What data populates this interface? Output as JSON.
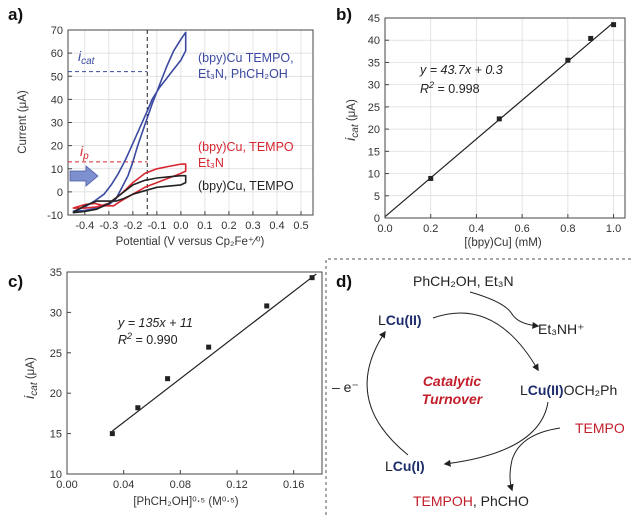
{
  "colors": {
    "blue": "#3b4aa0",
    "red": "#d7262f",
    "black": "#222222",
    "navy": "#1d2d6b",
    "darkred": "#c21e2a"
  },
  "panels": {
    "a": {
      "label": "a)",
      "xlabel": "Potential (V versus Cp₂Fe⁺⁄⁰)",
      "ylabel": "Current (μA)",
      "xticks": [
        "-0.4",
        "-0.3",
        "-0.2",
        "-0.1",
        "0.0",
        "0.1",
        "0.2",
        "0.3",
        "0.4",
        "0.5"
      ],
      "yticks": [
        "-10",
        "0",
        "10",
        "20",
        "30",
        "40",
        "50",
        "60",
        "70"
      ],
      "icat_label": "i",
      "icat_sub": "cat",
      "ip_label": "i",
      "ip_sub": "p",
      "series_blue_line1": "(bpy)Cu TEMPO,",
      "series_blue_line2": "Et₃N, PhCH₂OH",
      "series_red_line1": "(bpy)Cu, TEMPO",
      "series_red_line2": "Et₃N",
      "series_black": "(bpy)Cu, TEMPO"
    },
    "b": {
      "label": "b)",
      "xlabel": "[(bpy)Cu] (mM)",
      "ylabel_main": "i",
      "ylabel_sub": "cat",
      "ylabel_unit": " (μA)",
      "equation": "y = 43.7x + 0.3",
      "r2_label": "R",
      "r2_value": " = 0.998",
      "xticks": [
        "0.0",
        "0.2",
        "0.4",
        "0.6",
        "0.8",
        "1.0"
      ],
      "yticks": [
        "0",
        "5",
        "10",
        "15",
        "20",
        "25",
        "30",
        "35",
        "40",
        "45"
      ]
    },
    "c": {
      "label": "c)",
      "xlabel": "[PhCH₂OH]⁰⋅⁵ (M⁰⋅⁵)",
      "ylabel_main": "i",
      "ylabel_sub": "cat",
      "ylabel_unit": " (μA)",
      "equation": "y = 135x + 11",
      "r2_label": "R",
      "r2_value": " = 0.990",
      "xticks": [
        "0.00",
        "0.04",
        "0.08",
        "0.12",
        "0.16"
      ],
      "yticks": [
        "10",
        "15",
        "20",
        "25",
        "30",
        "35"
      ]
    },
    "d": {
      "label": "d)",
      "reagents": "PhCH₂OH, Et₃N",
      "byproduct": "Et₃NH⁺",
      "lcu2_l": "L",
      "lcu2_cu": "Cu(II)",
      "center_line1": "Catalytic",
      "center_line2": "Turnover",
      "lcu2och_l": "L",
      "lcu2och_cu": "Cu(II)",
      "lcu2och_tail": "OCH₂Ph",
      "tempo": "TEMPO",
      "minus_e": "– e⁻",
      "lcu1_l": "L",
      "lcu1_cu": "Cu(I)",
      "tempoh": "TEMPOH",
      "phcho": ", PhCHO"
    }
  },
  "chart_data": [
    {
      "panel": "a",
      "type": "line",
      "xlabel": "Potential (V versus Cp₂Fe⁺⁄⁰)",
      "ylabel": "Current (μA)",
      "xlim": [
        -0.47,
        0.55
      ],
      "ylim": [
        -10,
        70
      ],
      "series": [
        {
          "name": "(bpy)Cu TEMPO, Et₃N, PhCH₂OH",
          "color": "#3b4aa0",
          "x": [
            -0.45,
            -0.4,
            -0.35,
            -0.3,
            -0.27,
            -0.25,
            -0.22,
            -0.2,
            -0.18,
            -0.15,
            -0.12,
            -0.09,
            -0.06,
            -0.03,
            0.0,
            0.02,
            0.02,
            0.0,
            -0.03,
            -0.06,
            -0.09,
            -0.12,
            -0.14,
            -0.17,
            -0.2,
            -0.23,
            -0.26,
            -0.29,
            -0.32,
            -0.36,
            -0.4,
            -0.45
          ],
          "y": [
            -8.5,
            -8,
            -7,
            -5.5,
            -3,
            1,
            7,
            13,
            20,
            29,
            38,
            46,
            54,
            61,
            66,
            69,
            61,
            57,
            53,
            49,
            45,
            40,
            35,
            28,
            21,
            14,
            8,
            3,
            -1,
            -4,
            -6.5,
            -8.5
          ]
        },
        {
          "name": "(bpy)Cu, TEMPO Et₃N",
          "color": "#d7262f",
          "x": [
            -0.45,
            -0.4,
            -0.35,
            -0.3,
            -0.25,
            -0.2,
            -0.15,
            -0.1,
            -0.05,
            0.0,
            0.02,
            0.02,
            0.0,
            -0.05,
            -0.1,
            -0.15,
            -0.2,
            -0.25,
            -0.28,
            -0.32,
            -0.36,
            -0.4,
            -0.45
          ],
          "y": [
            -7,
            -7,
            -6.5,
            -5,
            -1,
            4,
            8,
            10,
            11,
            12,
            12,
            9,
            8,
            6,
            4,
            2,
            -1,
            -4,
            -6,
            -6,
            -5,
            -5.5,
            -7
          ]
        },
        {
          "name": "(bpy)Cu, TEMPO",
          "color": "#222222",
          "x": [
            -0.45,
            -0.4,
            -0.35,
            -0.3,
            -0.25,
            -0.2,
            -0.15,
            -0.1,
            -0.05,
            0.0,
            0.02,
            0.02,
            0.0,
            -0.05,
            -0.1,
            -0.15,
            -0.2,
            -0.24,
            -0.27,
            -0.3,
            -0.35,
            -0.4,
            -0.45
          ],
          "y": [
            -9,
            -8.5,
            -7.5,
            -5,
            -1,
            3,
            5,
            6,
            6.5,
            7,
            7,
            4,
            3,
            2.5,
            2,
            0.5,
            -1,
            -3,
            -4,
            -4,
            -4,
            -6,
            -9
          ]
        }
      ],
      "guides": {
        "v_x": -0.14,
        "icat_y": 52,
        "ip_y": 13
      }
    },
    {
      "panel": "b",
      "type": "scatter",
      "xlabel": "[(bpy)Cu] (mM)",
      "xlim": [
        0,
        1.05
      ],
      "ylim": [
        0,
        45
      ],
      "x": [
        0.2,
        0.5,
        0.8,
        0.9,
        1.0
      ],
      "y": [
        8.9,
        22.3,
        35.5,
        40.4,
        43.5
      ],
      "fit": {
        "slope": 43.7,
        "intercept": 0.3,
        "x_range": [
          0,
          1.0
        ]
      }
    },
    {
      "panel": "c",
      "type": "scatter",
      "xlabel": "[PhCH₂OH]⁰⋅⁵ (M⁰⋅⁵)",
      "xlim": [
        0,
        0.18
      ],
      "ylim": [
        10,
        35
      ],
      "x": [
        0.032,
        0.05,
        0.071,
        0.1,
        0.141,
        0.173
      ],
      "y": [
        15.0,
        18.2,
        21.8,
        25.7,
        30.8,
        34.3
      ],
      "fit": {
        "slope": 135,
        "intercept": 11,
        "x_range": [
          0.032,
          0.176
        ]
      }
    }
  ]
}
